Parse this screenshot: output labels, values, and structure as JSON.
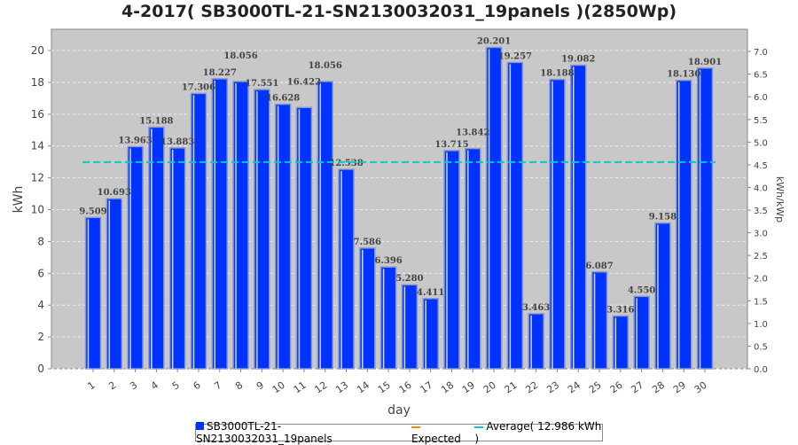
{
  "chart_data": {
    "type": "bar",
    "title": "4-2017( SB3000TL-21-SN2130032031_19panels )(2850Wp)",
    "xlabel": "day",
    "ylabel": "kWh",
    "y2label": "kWh/kWp",
    "ylim": [
      0,
      21.34
    ],
    "y2lim": [
      0,
      7.49
    ],
    "yticks": [
      0,
      2,
      4,
      6,
      8,
      10,
      12,
      14,
      16,
      18,
      20
    ],
    "y2ticks": [
      "0.0",
      "0.5",
      "1.0",
      "1.5",
      "2.0",
      "2.5",
      "3.0",
      "3.5",
      "4.0",
      "4.5",
      "5.0",
      "5.5",
      "6.0",
      "6.5",
      "7.0"
    ],
    "categories": [
      "1",
      "2",
      "3",
      "4",
      "5",
      "6",
      "7",
      "8",
      "9",
      "10",
      "11",
      "12",
      "13",
      "14",
      "15",
      "16",
      "17",
      "18",
      "19",
      "20",
      "21",
      "22",
      "23",
      "24",
      "25",
      "26",
      "27",
      "28",
      "29",
      "30"
    ],
    "values": [
      9.509,
      10.693,
      13.963,
      15.188,
      13.883,
      17.306,
      18.227,
      18.056,
      17.551,
      16.628,
      16.422,
      18.056,
      12.538,
      7.586,
      6.396,
      5.28,
      4.411,
      13.715,
      13.842,
      20.201,
      19.257,
      3.463,
      18.188,
      19.082,
      6.087,
      3.316,
      4.55,
      9.158,
      18.13,
      18.901
    ],
    "labels": [
      "9.509",
      "10.693",
      "13.963",
      "15.188",
      "13.883",
      "17.306",
      "18.227",
      "18.056",
      "17.551",
      "16.628",
      "16.422",
      "18.056",
      "12.538",
      "7.586",
      "6.396",
      "5.280",
      "4.411",
      "13.715",
      "13.842",
      "20.201",
      "19.257",
      "3.463",
      "18.188",
      "19.082",
      "6.087",
      "3.316",
      "4.550",
      "9.158",
      "18.130",
      "18.901"
    ],
    "average": 12.986,
    "grid": true,
    "legend_position": "bottom",
    "legend": {
      "series": "SB3000TL-21-SN2130032031_19panels",
      "expected": "Expected",
      "average": "Average( 12.986 kWh )"
    },
    "colors": {
      "bar": "#0033ff",
      "average": "#00cccc",
      "expected": "#ff8800",
      "plot_bg": "#c8c8c8"
    }
  }
}
